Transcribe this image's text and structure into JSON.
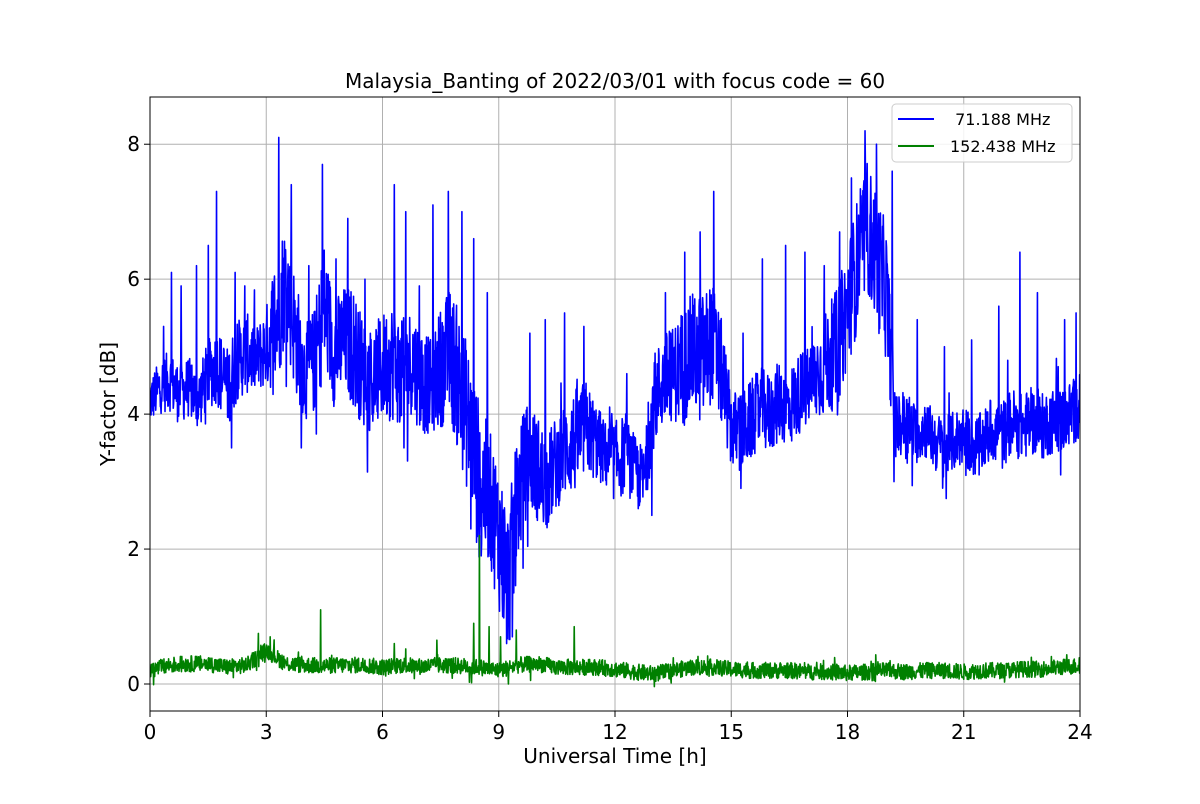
{
  "chart_data": {
    "type": "line",
    "title": "Malaysia_Banting of 2022/03/01 with focus code = 60",
    "xlabel": "Universal Time [h]",
    "ylabel": "Y-factor [dB]",
    "xlim": [
      0,
      24
    ],
    "ylim": [
      -0.4,
      8.7
    ],
    "xticks": [
      0,
      3,
      6,
      9,
      12,
      15,
      18,
      21,
      24
    ],
    "xtick_labels": [
      "0",
      "3",
      "6",
      "9",
      "12",
      "15",
      "18",
      "21",
      "24"
    ],
    "yticks": [
      0,
      2,
      4,
      6,
      8
    ],
    "ytick_labels": [
      "0",
      "2",
      "4",
      "6",
      "8"
    ],
    "grid": true,
    "legend_position": "top-right",
    "series": [
      {
        "name": " 71.188 MHz",
        "color": "#0000ff",
        "x": [
          0,
          0.25,
          0.5,
          0.75,
          1,
          1.25,
          1.5,
          1.75,
          2,
          2.25,
          2.5,
          2.75,
          3,
          3.25,
          3.5,
          3.75,
          4,
          4.25,
          4.5,
          4.75,
          5,
          5.25,
          5.5,
          5.75,
          6,
          6.25,
          6.5,
          6.75,
          7,
          7.25,
          7.5,
          7.75,
          8,
          8.25,
          8.5,
          8.75,
          9,
          9.25,
          9.5,
          9.75,
          10,
          10.25,
          10.5,
          10.75,
          11,
          11.25,
          11.5,
          11.75,
          12,
          12.25,
          12.5,
          12.75,
          13,
          13.25,
          13.5,
          13.75,
          14,
          14.25,
          14.5,
          14.75,
          15,
          15.25,
          15.5,
          15.75,
          16,
          16.25,
          16.5,
          16.75,
          17,
          17.25,
          17.5,
          17.75,
          18,
          18.25,
          18.5,
          18.75,
          19,
          19.25,
          19.5,
          19.75,
          20,
          20.25,
          20.5,
          20.75,
          21,
          21.25,
          21.5,
          21.75,
          22,
          22.25,
          22.5,
          22.75,
          23,
          23.25,
          23.5,
          23.75,
          24
        ],
        "y": [
          4.2,
          4.4,
          4.5,
          4.3,
          4.4,
          4.2,
          4.6,
          4.7,
          4.4,
          4.8,
          4.9,
          4.8,
          5.0,
          5.4,
          6.0,
          5.2,
          4.6,
          4.8,
          5.6,
          4.9,
          5.1,
          5.0,
          4.6,
          4.5,
          4.7,
          4.8,
          4.6,
          4.8,
          4.5,
          4.4,
          4.7,
          4.9,
          4.4,
          3.8,
          3.0,
          2.8,
          2.2,
          1.5,
          2.8,
          3.4,
          3.2,
          3.0,
          3.3,
          3.5,
          3.6,
          3.8,
          3.6,
          3.4,
          3.3,
          3.4,
          3.2,
          3.0,
          4.2,
          4.5,
          4.6,
          4.7,
          4.9,
          4.8,
          5.1,
          4.6,
          3.8,
          3.7,
          3.9,
          4.1,
          4.0,
          4.2,
          4.1,
          4.3,
          4.4,
          4.6,
          4.8,
          5.0,
          5.6,
          6.2,
          6.8,
          6.3,
          5.8,
          3.8,
          3.9,
          3.7,
          3.8,
          3.6,
          3.5,
          3.6,
          3.7,
          3.5,
          3.6,
          3.8,
          3.7,
          3.9,
          3.8,
          3.9,
          3.8,
          3.9,
          3.9,
          4.0,
          4.1
        ],
        "spread": [
          0.35,
          0.4,
          0.45,
          0.45,
          0.45,
          0.45,
          0.5,
          0.6,
          0.6,
          0.6,
          0.6,
          0.5,
          0.6,
          1.1,
          0.9,
          0.9,
          0.7,
          0.8,
          1.0,
          0.8,
          0.8,
          0.9,
          0.8,
          0.8,
          0.8,
          0.9,
          0.8,
          0.8,
          0.8,
          0.7,
          0.9,
          1.0,
          1.1,
          1.1,
          1.2,
          1.0,
          1.1,
          1.1,
          1.0,
          0.8,
          0.8,
          0.7,
          0.7,
          0.7,
          0.8,
          0.7,
          0.6,
          0.5,
          0.6,
          0.6,
          0.5,
          0.5,
          0.7,
          0.7,
          0.7,
          0.9,
          0.9,
          1.0,
          0.9,
          0.8,
          0.6,
          0.6,
          0.6,
          0.6,
          0.6,
          0.6,
          0.6,
          0.6,
          0.6,
          0.7,
          0.8,
          0.9,
          0.9,
          1.0,
          1.0,
          1.0,
          1.0,
          0.5,
          0.5,
          0.45,
          0.45,
          0.45,
          0.45,
          0.45,
          0.45,
          0.45,
          0.45,
          0.5,
          0.5,
          0.5,
          0.5,
          0.5,
          0.5,
          0.5,
          0.5,
          0.5,
          0.5
        ],
        "spikes": [
          [
            0.35,
            5.3
          ],
          [
            0.55,
            6.1
          ],
          [
            0.8,
            5.9
          ],
          [
            1.2,
            6.2
          ],
          [
            1.5,
            6.5
          ],
          [
            1.72,
            7.3
          ],
          [
            2.2,
            6.1
          ],
          [
            2.45,
            5.9
          ],
          [
            3.32,
            8.1
          ],
          [
            3.65,
            7.4
          ],
          [
            4.1,
            6.2
          ],
          [
            4.45,
            7.7
          ],
          [
            4.8,
            6.3
          ],
          [
            5.1,
            6.9
          ],
          [
            5.55,
            6.0
          ],
          [
            6.3,
            7.4
          ],
          [
            6.6,
            7.0
          ],
          [
            6.95,
            5.9
          ],
          [
            7.3,
            7.1
          ],
          [
            7.7,
            7.3
          ],
          [
            8.05,
            7.0
          ],
          [
            8.35,
            6.6
          ],
          [
            8.7,
            5.8
          ],
          [
            9.35,
            4.6
          ],
          [
            9.8,
            5.2
          ],
          [
            10.2,
            5.4
          ],
          [
            10.7,
            5.5
          ],
          [
            11.2,
            5.3
          ],
          [
            12.3,
            4.6
          ],
          [
            13.3,
            5.8
          ],
          [
            13.8,
            6.4
          ],
          [
            14.2,
            6.7
          ],
          [
            14.55,
            7.3
          ],
          [
            15.3,
            5.2
          ],
          [
            15.8,
            6.3
          ],
          [
            16.4,
            6.5
          ],
          [
            16.9,
            6.4
          ],
          [
            17.4,
            6.2
          ],
          [
            17.8,
            6.7
          ],
          [
            18.1,
            7.5
          ],
          [
            18.45,
            8.2
          ],
          [
            18.75,
            8.0
          ],
          [
            19.15,
            7.6
          ],
          [
            19.8,
            5.4
          ],
          [
            20.5,
            5.0
          ],
          [
            21.2,
            5.1
          ],
          [
            21.9,
            5.6
          ],
          [
            22.45,
            6.4
          ],
          [
            22.9,
            5.8
          ],
          [
            23.6,
            5.4
          ],
          [
            23.9,
            5.5
          ]
        ],
        "dips": [
          [
            2.1,
            3.5
          ],
          [
            3.9,
            3.5
          ],
          [
            6.55,
            3.5
          ],
          [
            8.28,
            2.3
          ],
          [
            8.55,
            1.9
          ],
          [
            9.1,
            1.0
          ],
          [
            9.2,
            0.6
          ],
          [
            9.35,
            0.7
          ],
          [
            10.1,
            2.7
          ],
          [
            12.6,
            2.6
          ],
          [
            12.95,
            2.5
          ],
          [
            15.25,
            2.9
          ],
          [
            19.2,
            3.0
          ],
          [
            20.55,
            2.75
          ],
          [
            21.4,
            3.1
          ],
          [
            22.0,
            3.2
          ],
          [
            23.5,
            3.1
          ]
        ]
      },
      {
        "name": "152.438 MHz",
        "color": "#008000",
        "x": [
          0,
          0.5,
          1,
          1.5,
          2,
          2.5,
          3,
          3.5,
          4,
          4.5,
          5,
          5.5,
          6,
          6.5,
          7,
          7.5,
          8,
          8.5,
          9,
          9.5,
          10,
          10.5,
          11,
          11.5,
          12,
          12.5,
          13,
          13.5,
          14,
          14.5,
          15,
          15.5,
          16,
          16.5,
          17,
          17.5,
          18,
          18.5,
          19,
          19.5,
          20,
          20.5,
          21,
          21.5,
          22,
          22.5,
          23,
          23.5,
          24
        ],
        "y": [
          0.2,
          0.28,
          0.3,
          0.3,
          0.25,
          0.28,
          0.5,
          0.3,
          0.28,
          0.27,
          0.28,
          0.28,
          0.25,
          0.28,
          0.26,
          0.28,
          0.27,
          0.25,
          0.2,
          0.28,
          0.3,
          0.25,
          0.25,
          0.25,
          0.22,
          0.18,
          0.15,
          0.2,
          0.25,
          0.25,
          0.22,
          0.2,
          0.2,
          0.2,
          0.18,
          0.18,
          0.16,
          0.18,
          0.2,
          0.18,
          0.2,
          0.2,
          0.18,
          0.2,
          0.2,
          0.22,
          0.22,
          0.25,
          0.27
        ],
        "spread": 0.12,
        "spikes": [
          [
            2.8,
            0.75
          ],
          [
            3.1,
            0.7
          ],
          [
            4.4,
            1.1
          ],
          [
            6.3,
            0.6
          ],
          [
            7.4,
            0.65
          ],
          [
            8.35,
            0.9
          ],
          [
            8.5,
            2.2
          ],
          [
            8.75,
            0.85
          ],
          [
            9.05,
            0.7
          ],
          [
            9.45,
            0.8
          ],
          [
            10.95,
            0.85
          ]
        ],
        "dips": [
          [
            9.25,
            0.0
          ],
          [
            8.3,
            0.02
          ]
        ]
      }
    ]
  }
}
